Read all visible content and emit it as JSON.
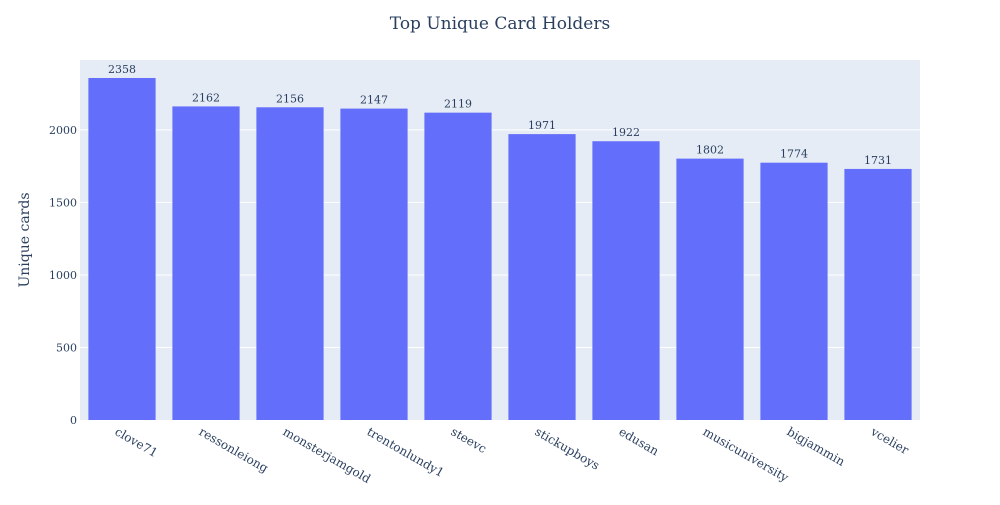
{
  "chart_data": {
    "type": "bar",
    "title": "Top Unique Card Holders",
    "xlabel": "",
    "ylabel": "Unique cards",
    "categories": [
      "clove71",
      "ressonleiong",
      "monsterjamgold",
      "trentonlundy1",
      "steevc",
      "stickupboys",
      "edusan",
      "musicuniversity",
      "bigjammin",
      "vcelier"
    ],
    "values": [
      2358,
      2162,
      2156,
      2147,
      2119,
      1971,
      1922,
      1802,
      1774,
      1731
    ],
    "ylim": [
      0,
      2482
    ],
    "yticks": [
      0,
      500,
      1000,
      1500,
      2000
    ],
    "bar_color": "#636efa",
    "plot_bg": "#e5ecf6",
    "grid": true,
    "data_labels": "outside"
  }
}
